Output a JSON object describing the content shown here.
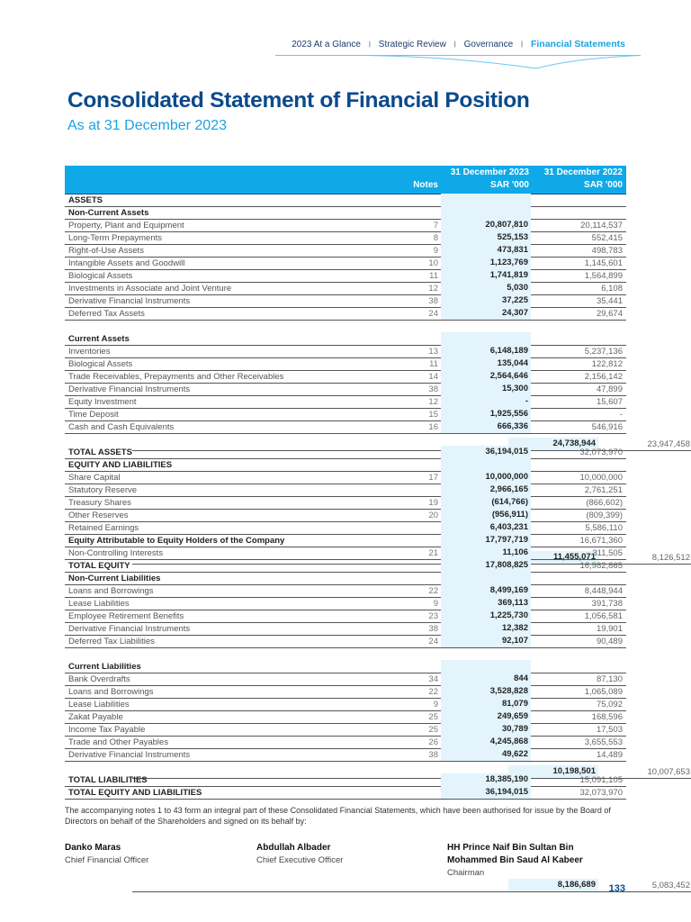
{
  "nav": {
    "items": [
      "2023 At a Glance",
      "Strategic Review",
      "Governance"
    ],
    "active": "Financial Statements",
    "accent": "#1aa3e0"
  },
  "title": "Consolidated Statement of Financial Position",
  "subtitle": "As at 31 December 2023",
  "table": {
    "headers": {
      "notes": "Notes",
      "col2023_line1": "31 December 2023",
      "col2023_line2": "SAR '000",
      "col2022_line1": "31 December 2022",
      "col2022_line2": "SAR '000"
    },
    "rows": [
      {
        "type": "head",
        "label": "ASSETS",
        "note": "",
        "v2023": "",
        "v2022": ""
      },
      {
        "type": "head",
        "label": "Non-Current Assets",
        "note": "",
        "v2023": "",
        "v2022": ""
      },
      {
        "type": "item",
        "label": "Property, Plant and Equipment",
        "note": "7",
        "v2023": "20,807,810",
        "v2022": "20,114,537"
      },
      {
        "type": "item",
        "label": "Long-Term Prepayments",
        "note": "8",
        "v2023": "525,153",
        "v2022": "552,415"
      },
      {
        "type": "item",
        "label": "Right-of-Use Assets",
        "note": "9",
        "v2023": "473,831",
        "v2022": "498,783"
      },
      {
        "type": "item",
        "label": "Intangible Assets and Goodwill",
        "note": "10",
        "v2023": "1,123,769",
        "v2022": "1,145,601"
      },
      {
        "type": "item",
        "label": "Biological Assets",
        "note": "11",
        "v2023": "1,741,819",
        "v2022": "1,564,899"
      },
      {
        "type": "item",
        "label": "Investments in Associate and Joint Venture",
        "note": "12",
        "v2023": "5,030",
        "v2022": "6,108"
      },
      {
        "type": "item",
        "label": "Derivative Financial Instruments",
        "note": "38",
        "v2023": "37,225",
        "v2022": "35,441"
      },
      {
        "type": "item",
        "label": "Deferred Tax Assets",
        "note": "24",
        "v2023": "24,307",
        "v2022": "29,674"
      },
      {
        "type": "sub",
        "label": "",
        "note": "",
        "v2023": "24,738,944",
        "v2022": "23,947,458"
      },
      {
        "type": "head",
        "label": "Current Assets",
        "note": "",
        "v2023": "",
        "v2022": ""
      },
      {
        "type": "item",
        "label": "Inventories",
        "note": "13",
        "v2023": "6,148,189",
        "v2022": "5,237,136"
      },
      {
        "type": "item",
        "label": "Biological Assets",
        "note": "11",
        "v2023": "135,044",
        "v2022": "122,812"
      },
      {
        "type": "item",
        "label": "Trade Receivables, Prepayments and Other Receivables",
        "note": "14",
        "v2023": "2,564,646",
        "v2022": "2,156,142"
      },
      {
        "type": "item",
        "label": "Derivative Financial Instruments",
        "note": "38",
        "v2023": "15,300",
        "v2022": "47,899"
      },
      {
        "type": "item",
        "label": "Equity Investment",
        "note": "12",
        "v2023": "-",
        "v2022": "15,607"
      },
      {
        "type": "item",
        "label": "Time Deposit",
        "note": "15",
        "v2023": "1,925,556",
        "v2022": "-"
      },
      {
        "type": "item",
        "label": "Cash and Cash Equivalents",
        "note": "16",
        "v2023": "666,336",
        "v2022": "546,916"
      },
      {
        "type": "sub",
        "label": "",
        "note": "",
        "v2023": "11,455,071",
        "v2022": "8,126,512"
      },
      {
        "type": "bold",
        "label": "TOTAL ASSETS",
        "note": "",
        "v2023": "36,194,015",
        "v2022": "32,073,970"
      },
      {
        "type": "head",
        "label": "EQUITY AND LIABILITIES",
        "note": "",
        "v2023": "",
        "v2022": ""
      },
      {
        "type": "item",
        "label": "Share Capital",
        "note": "17",
        "v2023": "10,000,000",
        "v2022": "10,000,000"
      },
      {
        "type": "item",
        "label": "Statutory Reserve",
        "note": "",
        "v2023": "2,966,165",
        "v2022": "2,761,251"
      },
      {
        "type": "item",
        "label": "Treasury Shares",
        "note": "19",
        "v2023": "(614,766)",
        "v2022": "(866,602)"
      },
      {
        "type": "item",
        "label": "Other Reserves",
        "note": "20",
        "v2023": "(956,911)",
        "v2022": "(809,399)"
      },
      {
        "type": "item",
        "label": "Retained Earnings",
        "note": "",
        "v2023": "6,403,231",
        "v2022": "5,586,110"
      },
      {
        "type": "bold",
        "label": "Equity Attributable to Equity Holders of the Company",
        "note": "",
        "v2023": "17,797,719",
        "v2022": "16,671,360"
      },
      {
        "type": "item",
        "label": "Non-Controlling Interests",
        "note": "21",
        "v2023": "11,106",
        "v2022": "311,505"
      },
      {
        "type": "bold",
        "label": "TOTAL EQUITY",
        "note": "",
        "v2023": "17,808,825",
        "v2022": "16,982,865"
      },
      {
        "type": "head",
        "label": "Non-Current Liabilities",
        "note": "",
        "v2023": "",
        "v2022": ""
      },
      {
        "type": "item",
        "label": "Loans and Borrowings",
        "note": "22",
        "v2023": "8,499,169",
        "v2022": "8,448,944"
      },
      {
        "type": "item",
        "label": "Lease Liabilities",
        "note": "9",
        "v2023": "369,113",
        "v2022": "391,738"
      },
      {
        "type": "item",
        "label": "Employee Retirement Benefits",
        "note": "23",
        "v2023": "1,225,730",
        "v2022": "1,056,581"
      },
      {
        "type": "item",
        "label": "Derivative Financial Instruments",
        "note": "38",
        "v2023": "12,382",
        "v2022": "19,901"
      },
      {
        "type": "item",
        "label": "Deferred Tax Liabilities",
        "note": "24",
        "v2023": "92,107",
        "v2022": "90,489"
      },
      {
        "type": "sub",
        "label": "",
        "note": "",
        "v2023": "10,198,501",
        "v2022": "10,007,653"
      },
      {
        "type": "head",
        "label": "Current Liabilities",
        "note": "",
        "v2023": "",
        "v2022": ""
      },
      {
        "type": "item",
        "label": "Bank Overdrafts",
        "note": "34",
        "v2023": "844",
        "v2022": "87,130"
      },
      {
        "type": "item",
        "label": "Loans and Borrowings",
        "note": "22",
        "v2023": "3,528,828",
        "v2022": "1,065,089"
      },
      {
        "type": "item",
        "label": "Lease Liabilities",
        "note": "9",
        "v2023": "81,079",
        "v2022": "75,092"
      },
      {
        "type": "item",
        "label": "Zakat Payable",
        "note": "25",
        "v2023": "249,659",
        "v2022": "168,596"
      },
      {
        "type": "item",
        "label": "Income Tax Payable",
        "note": "25",
        "v2023": "30,789",
        "v2022": "17,503"
      },
      {
        "type": "item",
        "label": "Trade and Other Payables",
        "note": "26",
        "v2023": "4,245,868",
        "v2022": "3,655,553"
      },
      {
        "type": "item",
        "label": "Derivative Financial Instruments",
        "note": "38",
        "v2023": "49,622",
        "v2022": "14,489"
      },
      {
        "type": "sub",
        "label": "",
        "note": "",
        "v2023": "8,186,689",
        "v2022": "5,083,452"
      },
      {
        "type": "bold",
        "label": "TOTAL LIABILITIES",
        "note": "",
        "v2023": "18,385,190",
        "v2022": "15,091,105"
      },
      {
        "type": "bold",
        "label": "TOTAL EQUITY AND LIABILITIES",
        "note": "",
        "v2023": "36,194,015",
        "v2022": "32,073,970"
      }
    ]
  },
  "footnote": "The accompanying notes 1 to 43 form an integral part of these Consolidated Financial Statements, which have been authorised for issue by the Board of Directors on behalf of the Shareholders and signed on its behalf by:",
  "signatories": [
    {
      "name": "Danko Maras",
      "title": "Chief Financial Officer"
    },
    {
      "name": "Abdullah Albader",
      "title": "Chief Executive Officer"
    },
    {
      "name": "HH Prince Naif Bin Sultan Bin Mohammed Bin Saud Al Kabeer",
      "title": "Chairman"
    }
  ],
  "page_number": "133"
}
